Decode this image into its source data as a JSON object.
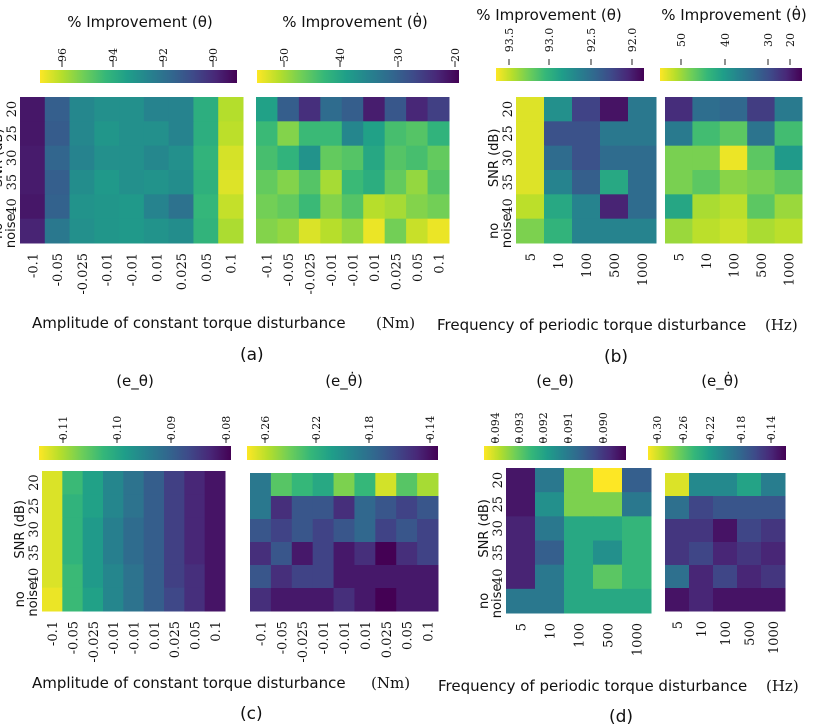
{
  "colormap": [
    "#440154",
    "#482878",
    "#3e4a89",
    "#31688e",
    "#26828e",
    "#1f9e89",
    "#35b779",
    "#6ece58",
    "#b5de2b",
    "#fde725"
  ],
  "x_label_a": "Amplitude of constant torque disturbance",
  "x_label_a_unit": "(Nm)",
  "x_label_b": "Frequency of periodic torque disturbance",
  "x_label_b_unit": "(Hz)",
  "y_label_main": "SNR",
  "y_label_unit": "(dB)",
  "snr_levels": [
    "20",
    "25",
    "30",
    "35",
    "40"
  ],
  "snr_noise": [
    "no",
    "noise"
  ],
  "amplitudes": [
    "-0.1",
    "-0.05",
    "-0.025",
    "-0.01",
    "-0.01",
    "0.01",
    "0.025",
    "0.05",
    "0.1"
  ],
  "frequencies": [
    "5",
    "10",
    "100",
    "500",
    "1000"
  ],
  "panel_labels": {
    "a": "(a)",
    "b": "(b)",
    "c": "(c)",
    "d": "(d)"
  },
  "chart_data": [
    {
      "type": "heatmap",
      "id": "a_theta",
      "title": "% Improvement (θ)",
      "colorbar_ticks": [
        "96",
        "94",
        "92",
        "90"
      ],
      "cmin": 89,
      "cmax": 97,
      "x": "amplitudes",
      "rows": [
        [
          89.5,
          91.4,
          92.7,
          93.0,
          93.0,
          92.6,
          92.6,
          94.0,
          96.1
        ],
        [
          89.5,
          91.3,
          92.7,
          93.2,
          93.0,
          93.0,
          92.6,
          94.0,
          96.2
        ],
        [
          89.6,
          91.6,
          92.6,
          93.0,
          93.0,
          92.7,
          93.0,
          94.2,
          96.5
        ],
        [
          89.6,
          91.4,
          92.9,
          93.3,
          93.0,
          93.1,
          92.9,
          94.1,
          96.6
        ],
        [
          89.5,
          91.5,
          93.1,
          93.2,
          93.3,
          92.6,
          92.0,
          94.3,
          96.3
        ],
        [
          89.8,
          92.2,
          93.0,
          93.2,
          93.3,
          93.1,
          92.9,
          94.2,
          96.0
        ]
      ]
    },
    {
      "type": "heatmap",
      "id": "a_thetadot",
      "title": "% Improvement (θ̇)",
      "colorbar_ticks": [
        "50",
        "40",
        "30",
        "20"
      ],
      "cmin": 19,
      "cmax": 56,
      "x": "amplitudes",
      "rows": [
        [
          40,
          30,
          24,
          32,
          30,
          22,
          29,
          23,
          26
        ],
        [
          44,
          49,
          44,
          44,
          36,
          40,
          45,
          46,
          43
        ],
        [
          45,
          43,
          38,
          47,
          46,
          41,
          46,
          45,
          47
        ],
        [
          47,
          49,
          46,
          51,
          44,
          42,
          47,
          50,
          46
        ],
        [
          48,
          47,
          44,
          49,
          46,
          52,
          51,
          49,
          48
        ],
        [
          49,
          50,
          54,
          52,
          50,
          55,
          48,
          53,
          55
        ]
      ]
    },
    {
      "type": "heatmap",
      "id": "b_theta",
      "title": "% Improvement (θ)",
      "colorbar_ticks": [
        "93.5",
        "93.0",
        "92.5",
        "92.0"
      ],
      "cmin": 91.7,
      "cmax": 93.7,
      "x": "frequencies",
      "rows": [
        [
          93.6,
          92.7,
          92.1,
          91.8,
          92.5
        ],
        [
          93.6,
          92.2,
          92.2,
          92.5,
          92.5
        ],
        [
          93.6,
          92.4,
          92.2,
          92.4,
          92.4
        ],
        [
          93.6,
          92.6,
          92.3,
          92.9,
          92.4
        ],
        [
          93.5,
          92.9,
          92.6,
          91.9,
          92.4
        ],
        [
          93.3,
          93.0,
          92.6,
          92.6,
          92.6
        ]
      ]
    },
    {
      "type": "heatmap",
      "id": "b_thetadot",
      "title": "% Improvement (θ̇)",
      "colorbar_ticks": [
        "50",
        "40",
        "30",
        "20"
      ],
      "cmin": 17,
      "cmax": 56,
      "x": "frequencies",
      "rows": [
        [
          22,
          31,
          30,
          24,
          33
        ],
        [
          33,
          44,
          46,
          32,
          44
        ],
        [
          48,
          48,
          55,
          46,
          38
        ],
        [
          48,
          46,
          49,
          48,
          46
        ],
        [
          40,
          51,
          52,
          46,
          50
        ],
        [
          50,
          52,
          53,
          51,
          52
        ]
      ]
    },
    {
      "type": "heatmap",
      "id": "c_etheta",
      "title": "(e_θ)",
      "colorbar_ticks": [
        "0.11",
        "0.10",
        "0.09",
        "0.08"
      ],
      "cmin": 0.079,
      "cmax": 0.116,
      "x": "amplitudes",
      "rows": [
        [
          0.114,
          0.104,
          0.1,
          0.096,
          0.093,
          0.09,
          0.086,
          0.083,
          0.081
        ],
        [
          0.114,
          0.103,
          0.1,
          0.096,
          0.093,
          0.09,
          0.086,
          0.083,
          0.081
        ],
        [
          0.114,
          0.103,
          0.099,
          0.095,
          0.092,
          0.09,
          0.086,
          0.083,
          0.081
        ],
        [
          0.114,
          0.103,
          0.099,
          0.095,
          0.092,
          0.09,
          0.086,
          0.083,
          0.081
        ],
        [
          0.114,
          0.104,
          0.099,
          0.096,
          0.093,
          0.09,
          0.086,
          0.084,
          0.081
        ],
        [
          0.115,
          0.104,
          0.1,
          0.096,
          0.093,
          0.09,
          0.087,
          0.084,
          0.081
        ]
      ]
    },
    {
      "type": "heatmap",
      "id": "c_ethetadot",
      "title": "(e_θ̇)",
      "colorbar_ticks": [
        "0.26",
        "0.22",
        "0.18",
        "0.14"
      ],
      "cmin": 0.13,
      "cmax": 0.28,
      "x": "amplitudes",
      "rows": [
        [
          0.19,
          0.24,
          0.23,
          0.22,
          0.25,
          0.23,
          0.27,
          0.24,
          0.26
        ],
        [
          0.19,
          0.15,
          0.17,
          0.17,
          0.15,
          0.18,
          0.17,
          0.16,
          0.17
        ],
        [
          0.17,
          0.16,
          0.17,
          0.16,
          0.17,
          0.18,
          0.16,
          0.17,
          0.16
        ],
        [
          0.15,
          0.17,
          0.14,
          0.16,
          0.14,
          0.15,
          0.13,
          0.15,
          0.16
        ],
        [
          0.17,
          0.15,
          0.16,
          0.16,
          0.14,
          0.14,
          0.14,
          0.14,
          0.14
        ],
        [
          0.15,
          0.14,
          0.14,
          0.14,
          0.15,
          0.14,
          0.13,
          0.14,
          0.14
        ]
      ]
    },
    {
      "type": "heatmap",
      "id": "d_etheta",
      "title": "(e_θ)",
      "colorbar_ticks": [
        "0.094",
        "0.093",
        "0.092",
        "0.091",
        "0.090"
      ],
      "cmin": 0.0895,
      "cmax": 0.0945,
      "x": "frequencies",
      "rows": [
        [
          0.0898,
          0.0915,
          0.0935,
          0.0945,
          0.091
        ],
        [
          0.0898,
          0.092,
          0.0935,
          0.0935,
          0.0915
        ],
        [
          0.09,
          0.0915,
          0.0925,
          0.0925,
          0.0928
        ],
        [
          0.09,
          0.091,
          0.0925,
          0.092,
          0.0928
        ],
        [
          0.09,
          0.0915,
          0.0925,
          0.0932,
          0.0928
        ],
        [
          0.0915,
          0.0915,
          0.0925,
          0.0925,
          0.0925
        ]
      ]
    },
    {
      "type": "heatmap",
      "id": "d_ethetadot",
      "title": "(e_θ̇)",
      "colorbar_ticks": [
        "0.30",
        "0.26",
        "0.22",
        "0.18",
        "0.14"
      ],
      "cmin": 0.13,
      "cmax": 0.32,
      "x": "frequencies",
      "rows": [
        [
          0.31,
          0.22,
          0.22,
          0.24,
          0.21
        ],
        [
          0.2,
          0.17,
          0.18,
          0.18,
          0.18
        ],
        [
          0.16,
          0.16,
          0.14,
          0.17,
          0.16
        ],
        [
          0.16,
          0.17,
          0.15,
          0.16,
          0.15
        ],
        [
          0.2,
          0.15,
          0.17,
          0.15,
          0.16
        ],
        [
          0.14,
          0.15,
          0.14,
          0.14,
          0.14
        ]
      ]
    }
  ]
}
